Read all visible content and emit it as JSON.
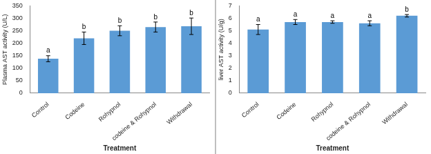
{
  "chart_data": [
    {
      "type": "bar",
      "categories": [
        "Control",
        "Codeine",
        "Rohypnol",
        "codeine & Rohypnol",
        "Withdrawal"
      ],
      "values": [
        138,
        220,
        250,
        265,
        268
      ],
      "errors": [
        12,
        25,
        20,
        20,
        33
      ],
      "letters": [
        "a",
        "b",
        "b",
        "b",
        "b"
      ],
      "color": "#5b9bd5",
      "x_label": "Treatment",
      "y_label": "Plasma AST activity (U/L)",
      "ylim": [
        0,
        350
      ],
      "yticks": [
        0,
        50,
        100,
        150,
        200,
        250,
        300,
        350
      ],
      "grid": false
    },
    {
      "type": "bar",
      "categories": [
        "Control",
        "Codeine",
        "Rohypnol",
        "codeine & Rohypnol",
        "Withdrawal"
      ],
      "values": [
        5.1,
        5.7,
        5.7,
        5.6,
        6.2
      ],
      "errors": [
        0.4,
        0.2,
        0.1,
        0.2,
        0.1
      ],
      "letters": [
        "a",
        "a",
        "a",
        "a",
        "b"
      ],
      "color": "#5b9bd5",
      "x_label": "Treatment",
      "y_label": "liver AST activity (U/g)",
      "ylim": [
        0,
        7
      ],
      "yticks": [
        0,
        1,
        2,
        3,
        4,
        5,
        6,
        7
      ],
      "grid": false
    }
  ]
}
